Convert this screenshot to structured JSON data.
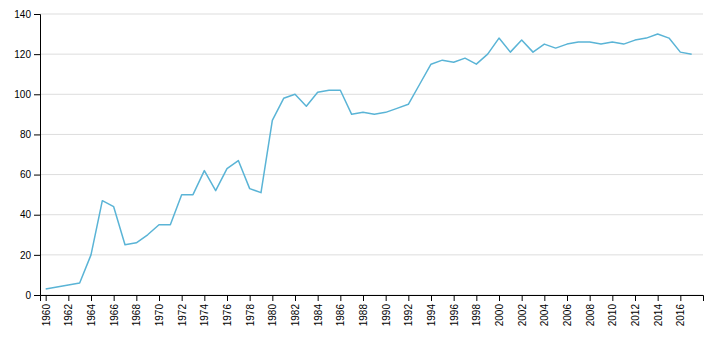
{
  "chart_data": {
    "type": "line",
    "x": [
      1960,
      1961,
      1962,
      1963,
      1964,
      1965,
      1966,
      1967,
      1968,
      1969,
      1970,
      1971,
      1972,
      1973,
      1974,
      1975,
      1976,
      1977,
      1978,
      1979,
      1980,
      1981,
      1982,
      1983,
      1984,
      1985,
      1986,
      1987,
      1988,
      1989,
      1990,
      1991,
      1992,
      1993,
      1994,
      1995,
      1996,
      1997,
      1998,
      1999,
      2000,
      2001,
      2002,
      2003,
      2004,
      2005,
      2006,
      2007,
      2008,
      2009,
      2010,
      2011,
      2012,
      2013,
      2014,
      2015,
      2016,
      2017
    ],
    "values": [
      3,
      4,
      5,
      6,
      20,
      47,
      44,
      25,
      26,
      30,
      35,
      35,
      50,
      50,
      62,
      52,
      63,
      67,
      53,
      51,
      87,
      98,
      100,
      94,
      101,
      102,
      102,
      90,
      91,
      90,
      91,
      93,
      95,
      105,
      115,
      117,
      116,
      118,
      115,
      120,
      128,
      121,
      127,
      121,
      125,
      123,
      125,
      126,
      126,
      125,
      126,
      125,
      127,
      128,
      130,
      128,
      121,
      120
    ],
    "color": "#5ab4d6",
    "xlim": [
      1959.5,
      2018.0
    ],
    "xticks": [
      1960,
      1962,
      1964,
      1966,
      1968,
      1970,
      1972,
      1974,
      1976,
      1978,
      1980,
      1982,
      1984,
      1986,
      1988,
      1990,
      1992,
      1994,
      1996,
      1998,
      2000,
      2002,
      2004,
      2006,
      2008,
      2010,
      2012,
      2014,
      2016
    ],
    "ylim": [
      0,
      140
    ],
    "yticks": [
      0,
      20,
      40,
      60,
      80,
      100,
      120,
      140
    ],
    "grid": true
  }
}
